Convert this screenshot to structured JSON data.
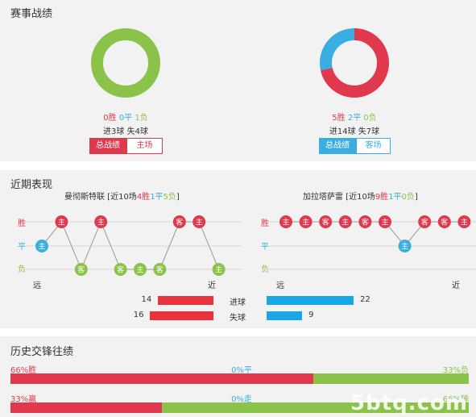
{
  "season": {
    "title": "赛事战绩",
    "home": {
      "win": "0胜",
      "draw": "0平",
      "loss": "1负",
      "goals": "进3球 失4球",
      "win_n": 0,
      "draw_n": 0,
      "loss_n": 1,
      "btn_total": "总战绩",
      "btn_split": "主场"
    },
    "away": {
      "win": "5胜",
      "draw": "2平",
      "loss": "0负",
      "goals": "进14球 失7球",
      "win_n": 5,
      "draw_n": 2,
      "loss_n": 0,
      "btn_total": "总战绩",
      "btn_split": "客场"
    }
  },
  "recent": {
    "title": "近期表现",
    "home": {
      "name": "曼彻斯特联",
      "pre": " [近10场",
      "w": "4胜",
      "d": "1平",
      "l": "5负",
      "post": "]",
      "results": [
        {
          "r": "D",
          "v": "主"
        },
        {
          "r": "W",
          "v": "主"
        },
        {
          "r": "L",
          "v": "客"
        },
        {
          "r": "W",
          "v": "主"
        },
        {
          "r": "L",
          "v": "客"
        },
        {
          "r": "L",
          "v": "主"
        },
        {
          "r": "L",
          "v": "客"
        },
        {
          "r": "W",
          "v": "客"
        },
        {
          "r": "W",
          "v": "主"
        },
        {
          "r": "L",
          "v": "主"
        }
      ]
    },
    "away": {
      "name": "加拉塔萨雷",
      "pre": " [近10场",
      "w": "9胜",
      "d": "1平",
      "l": "0负",
      "post": "]",
      "results": [
        {
          "r": "W",
          "v": "主"
        },
        {
          "r": "W",
          "v": "主"
        },
        {
          "r": "W",
          "v": "客"
        },
        {
          "r": "W",
          "v": "主"
        },
        {
          "r": "W",
          "v": "客"
        },
        {
          "r": "W",
          "v": "主"
        },
        {
          "r": "D",
          "v": "主"
        },
        {
          "r": "W",
          "v": "客"
        },
        {
          "r": "W",
          "v": "客"
        },
        {
          "r": "W",
          "v": "主"
        }
      ]
    },
    "axis": {
      "win": "胜",
      "draw": "平",
      "loss": "负",
      "far": "远",
      "near": "近"
    },
    "scored_label": "进球",
    "conceded_label": "失球",
    "home_scored": 14,
    "home_conceded": 16,
    "away_scored": 22,
    "away_conceded": 9
  },
  "history": {
    "title": "历史交锋往绩",
    "row1": {
      "left": "66%胜",
      "mid": "0%平",
      "right": "33%负",
      "left_pct": 66
    },
    "row2": {
      "left": "33%赢",
      "mid": "0%走",
      "right": "66%输",
      "left_pct": 33
    }
  },
  "colors": {
    "win": "#e0394e",
    "draw": "#3aaee0",
    "loss": "#8bc34a",
    "bar_red": "#e8323c",
    "bar_blue": "#1aa7e8"
  },
  "watermark": "5btq.com"
}
